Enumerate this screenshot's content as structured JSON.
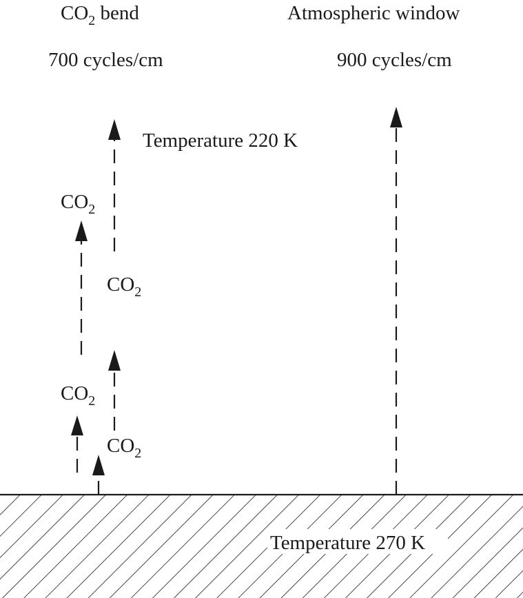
{
  "columns": {
    "left": {
      "title_main": "CO",
      "title_sub": "2",
      "title_rest": " bend",
      "wavenumber": "700 cycles/cm"
    },
    "right": {
      "title": "Atmospheric window",
      "wavenumber": "900 cycles/cm"
    }
  },
  "labels": {
    "top_temperature": "Temperature 220 K",
    "ground_temperature": "Temperature 270 K",
    "co2_main": "CO",
    "co2_sub": "2"
  },
  "colors": {
    "ink": "#1a1a1a",
    "background": "#ffffff"
  }
}
